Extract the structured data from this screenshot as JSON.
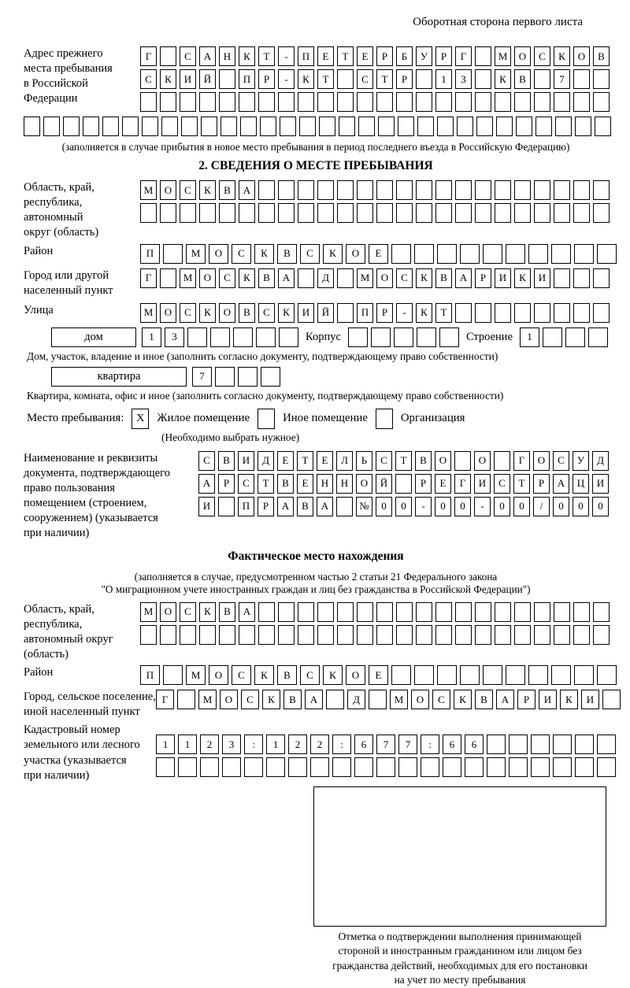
{
  "header": {
    "back_side_label": "Оборотная сторона первого листа"
  },
  "prev_address": {
    "label_lines": [
      "Адрес прежнего",
      "места пребывания",
      "в Российской",
      "Федерации"
    ],
    "row1": "Г САНКТ-ПЕТЕРБУРГ МОСКОВ",
    "row2": "СКИЙ ПР-КТ СТР 13 КВ 7",
    "row3": "",
    "row4_full": "",
    "note": "(заполняется в случае прибытия в новое место пребывания в период последнего въезда в Российскую Федерацию)"
  },
  "section2": {
    "title": "2. СВЕДЕНИЯ О МЕСТЕ ПРЕБЫВАНИЯ",
    "oblast": {
      "label_lines": [
        "Область, край,",
        "республика,",
        "автономный",
        "округ (область)"
      ],
      "row1": "МОСКВА",
      "row2": ""
    },
    "raion": {
      "label": "Район",
      "row": "П МОСКВСКОЕ"
    },
    "gorod": {
      "label_lines": [
        "Город или другой",
        "населенный пункт"
      ],
      "row": "Г МОСКВА Д МОСКВАРИКИ"
    },
    "ulitsa": {
      "label": "Улица",
      "row": "МОСКОВСКИЙ ПР-КТ"
    },
    "dom": {
      "box_label": "дом",
      "cells": "13",
      "korpus_label": "Корпус",
      "korpus_cells": "",
      "stroenie_label": "Строение",
      "stroenie_cells": "1",
      "caption": "Дом, участок, владение и иное (заполнить согласно документу, подтверждающему право собственности)"
    },
    "kvartira": {
      "box_label": "квартира",
      "cells": "7",
      "caption": "Квартира, комната, офис и иное (заполнить согласно документу, подтверждающему право собственности)"
    },
    "mesto": {
      "label": "Место пребывания:",
      "options": [
        {
          "mark": "X",
          "label": "Жилое помещение"
        },
        {
          "mark": "",
          "label": "Иное помещение"
        },
        {
          "mark": "",
          "label": "Организация"
        }
      ],
      "note": "(Необходимо выбрать нужное)"
    },
    "doc": {
      "label_lines": [
        "Наименование и реквизиты",
        "документа, подтверждающего",
        "право пользования",
        "помещением (строением,",
        "сооружением) (указывается",
        "при наличии)"
      ],
      "row1": "СВИДЕТЕЛЬСТВО О ГОСУД",
      "row2": "АРСТВЕННОЙ РЕГИСТРАЦИ",
      "row3": "И ПРАВА №00-00-00/000"
    }
  },
  "fact_location": {
    "title": "Фактическое место нахождения",
    "note_line1": "(заполняется в случае, предусмотренном частью 2 статьи 21 Федерального закона",
    "note_line2": "\"О миграционном учете иностранных граждан и лиц без гражданства в Российской Федерации\")",
    "oblast": {
      "label_lines": [
        "Область, край,",
        "республика,",
        "автономный округ",
        "(область)"
      ],
      "row1": "МОСКВА",
      "row2": ""
    },
    "raion": {
      "label": "Район",
      "row": "П МОСКВСКОЕ"
    },
    "gorod": {
      "label_lines": [
        "Город, сельское поселение,",
        "иной населенный пункт"
      ],
      "row": "Г МОСКВА Д МОСКВАРИКИ"
    },
    "kadastr": {
      "label_lines": [
        "Кадастровый номер",
        "земельного или лесного",
        "участка (указывается",
        "при наличии)"
      ],
      "row1": "1123:122:677:66",
      "row2": ""
    },
    "stamp_caption_lines": [
      "Отметка о подтверждении выполнения принимающей",
      "стороной и иностранным гражданином или лицом без",
      "гражданства действий, необходимых для его постановки",
      "на учет по месту пребывания"
    ]
  }
}
